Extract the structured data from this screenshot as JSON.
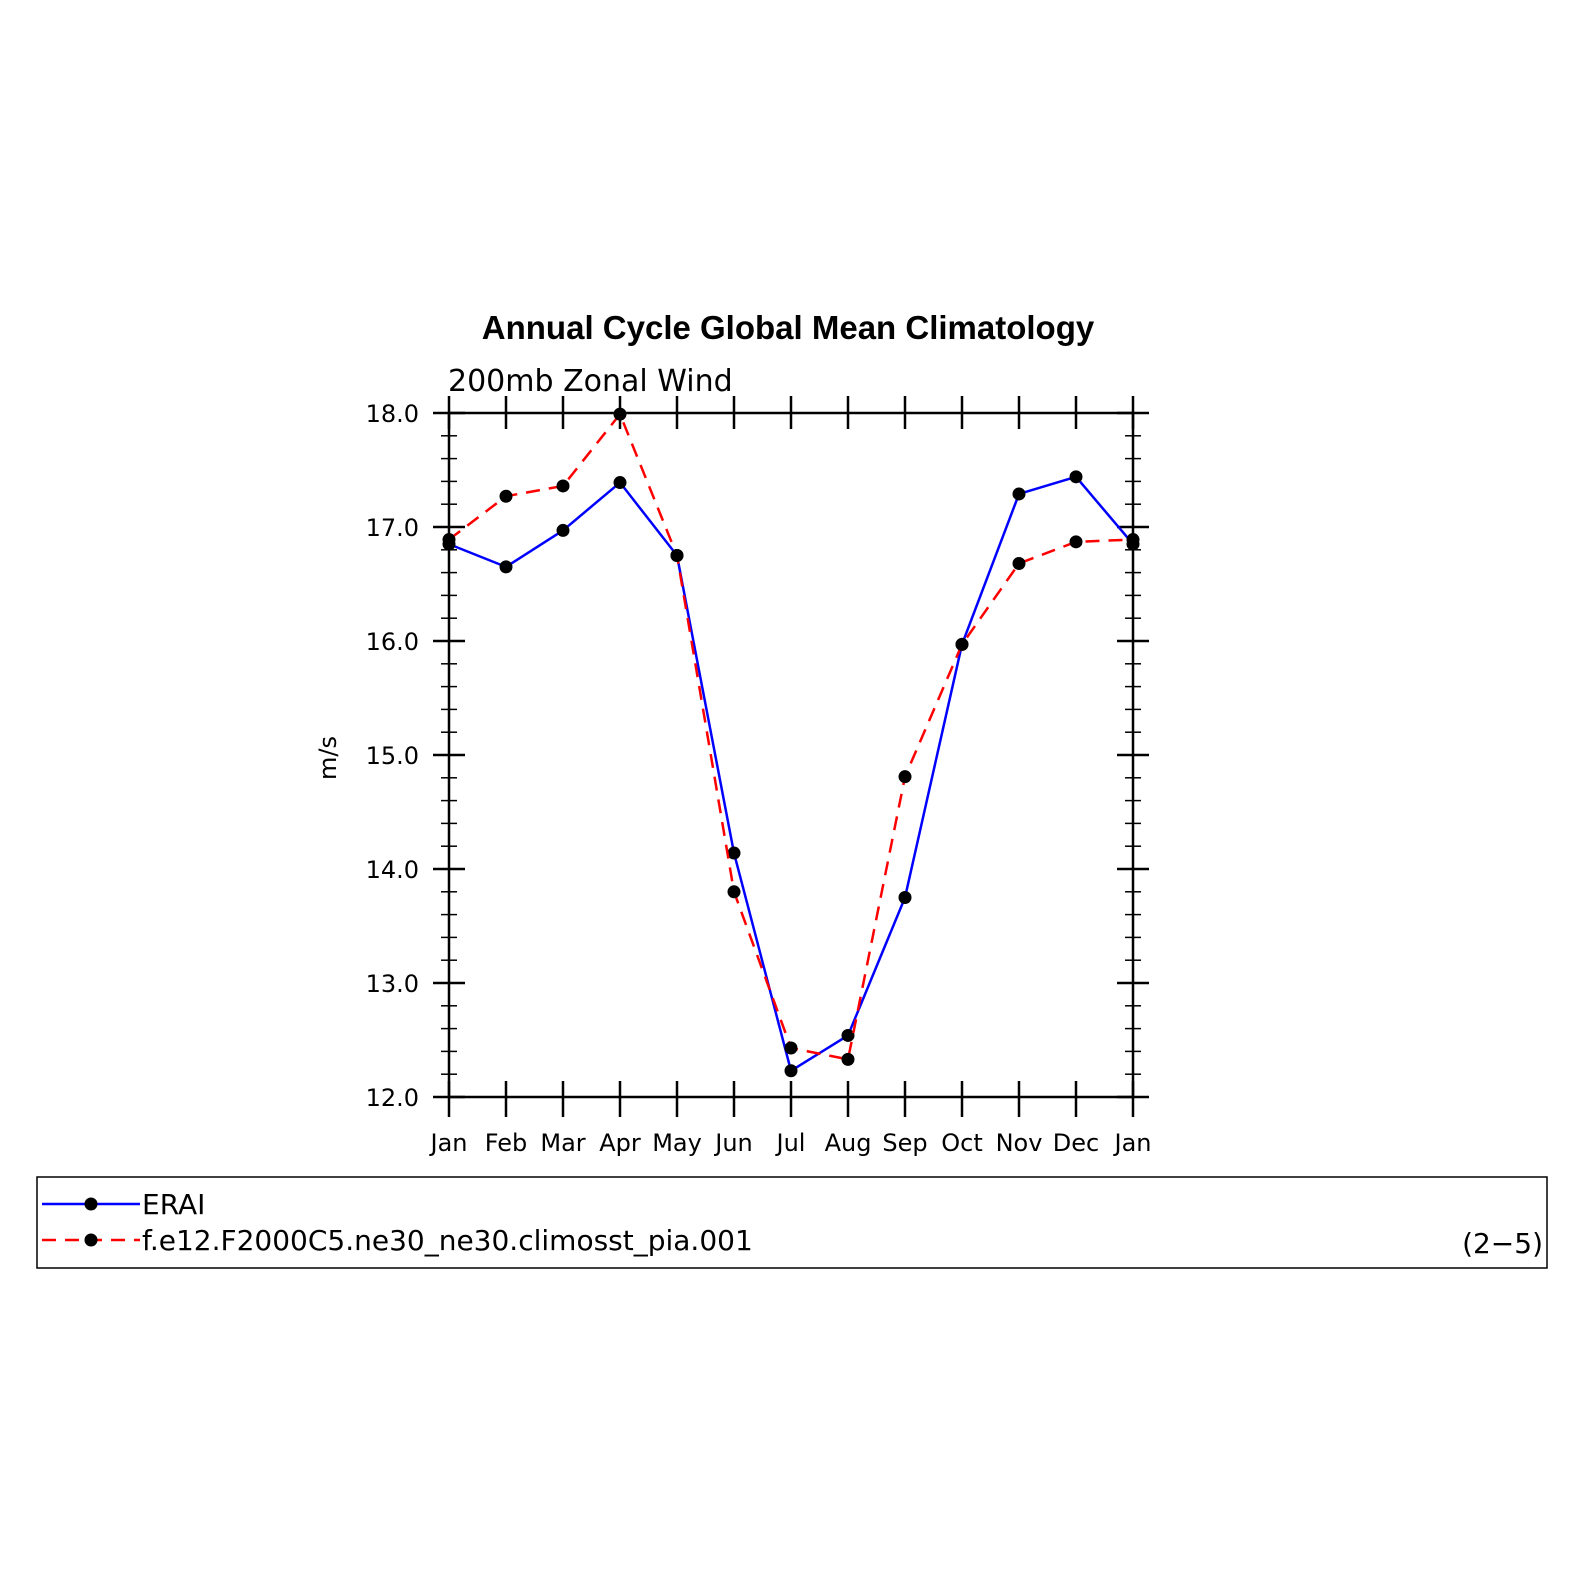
{
  "chart_data": {
    "type": "line",
    "title": "Annual Cycle Global Mean Climatology",
    "subtitle": "200mb Zonal Wind",
    "ylabel": "m/s",
    "xlabel": "",
    "categories": [
      "Jan",
      "Feb",
      "Mar",
      "Apr",
      "May",
      "Jun",
      "Jul",
      "Aug",
      "Sep",
      "Oct",
      "Nov",
      "Dec",
      "Jan"
    ],
    "ylim": [
      12.0,
      18.0
    ],
    "yticks": [
      "12.0",
      "13.0",
      "14.0",
      "15.0",
      "16.0",
      "17.0",
      "18.0"
    ],
    "grid": false,
    "legend_position": "bottom",
    "series": [
      {
        "name": "ERAI",
        "color": "#0000ff",
        "dash": "solid",
        "marker": "circle",
        "values": [
          16.85,
          16.65,
          16.97,
          17.39,
          16.75,
          14.14,
          12.23,
          12.54,
          13.75,
          15.97,
          17.29,
          17.44,
          16.85
        ]
      },
      {
        "name": "f.e12.F2000C5.ne30_ne30.climosst_pia.001",
        "color": "#ff0000",
        "dash": "dashed",
        "marker": "circle",
        "values": [
          16.89,
          17.27,
          17.36,
          17.99,
          16.75,
          13.8,
          12.43,
          12.33,
          14.81,
          15.97,
          16.68,
          16.87,
          16.89
        ]
      }
    ],
    "panel_id": "(2−5)"
  }
}
